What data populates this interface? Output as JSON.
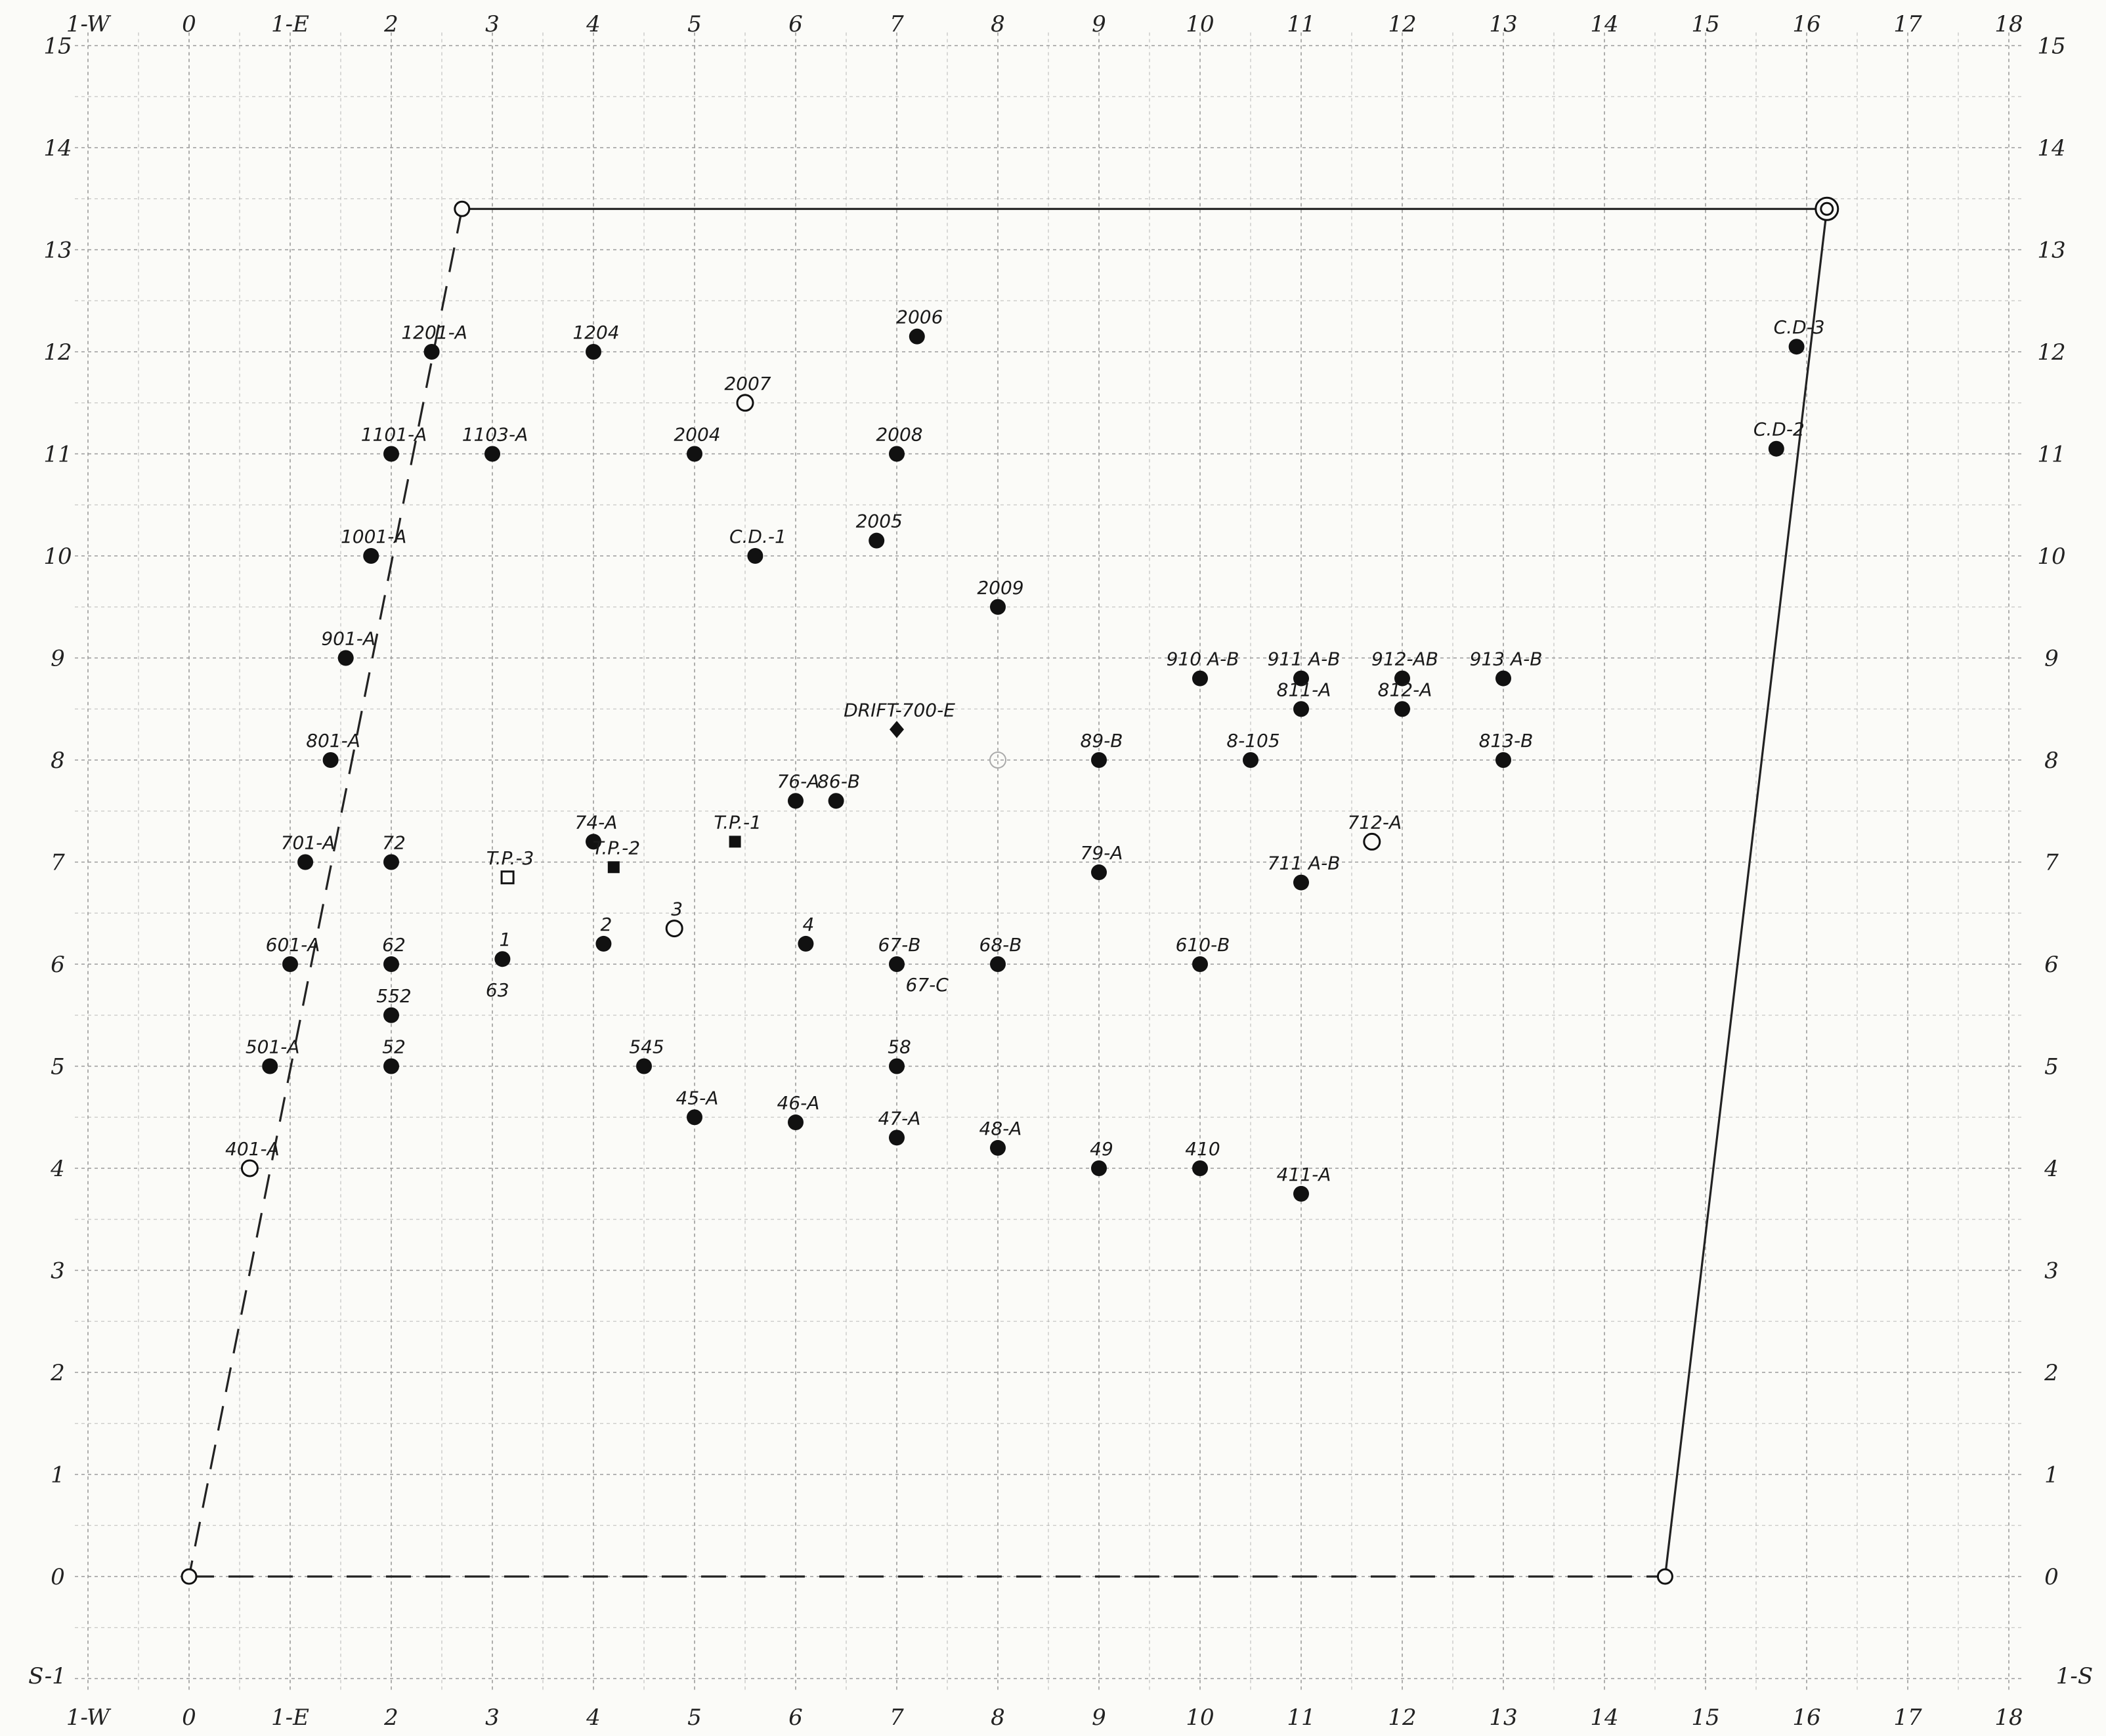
{
  "chart_data": {
    "type": "scatter",
    "x_ticks": [
      "1-W",
      "0",
      "1-E",
      "2",
      "3",
      "4",
      "5",
      "6",
      "7",
      "8",
      "9",
      "10",
      "11",
      "12",
      "13",
      "14",
      "15",
      "16",
      "17",
      "18"
    ],
    "y_ticks": [
      "S-1",
      "0",
      "1",
      "2",
      "3",
      "4",
      "5",
      "6",
      "7",
      "8",
      "9",
      "10",
      "11",
      "12",
      "13",
      "14",
      "15"
    ],
    "bottom_left_label": "S-1",
    "bottom_right_label": "1-S",
    "xlim": [
      -1,
      18
    ],
    "ylim": [
      -1,
      15
    ],
    "grid": true,
    "boundary": {
      "corners": [
        {
          "x": 0,
          "y": 0,
          "marker": "open-circle"
        },
        {
          "x": 14.6,
          "y": 0,
          "marker": "open-circle"
        },
        {
          "x": 16.2,
          "y": 13.4,
          "marker": "double-circle"
        },
        {
          "x": 2.7,
          "y": 13.4,
          "marker": "open-circle"
        }
      ],
      "edges": [
        {
          "from": 0,
          "to": 1,
          "style": "dashed"
        },
        {
          "from": 1,
          "to": 2,
          "style": "solid"
        },
        {
          "from": 2,
          "to": 3,
          "style": "solid"
        },
        {
          "from": 3,
          "to": 0,
          "style": "dashed"
        }
      ]
    },
    "points": [
      {
        "label": "1201-A",
        "x": 2.4,
        "y": 12,
        "marker": "filled-circle"
      },
      {
        "label": "1204",
        "x": 4,
        "y": 12,
        "marker": "filled-circle"
      },
      {
        "label": "2006",
        "x": 7.2,
        "y": 12.15,
        "marker": "filled-circle"
      },
      {
        "label": "2007",
        "x": 5.5,
        "y": 11.5,
        "marker": "open-circle"
      },
      {
        "label": "1101-A",
        "x": 2,
        "y": 11,
        "marker": "filled-circle"
      },
      {
        "label": "1103-A",
        "x": 3,
        "y": 11,
        "marker": "filled-circle"
      },
      {
        "label": "2004",
        "x": 5,
        "y": 11,
        "marker": "filled-circle"
      },
      {
        "label": "2008",
        "x": 7,
        "y": 11,
        "marker": "filled-circle"
      },
      {
        "label": "1001-A",
        "x": 1.8,
        "y": 10,
        "marker": "filled-circle"
      },
      {
        "label": "C.D.-1",
        "x": 5.6,
        "y": 10,
        "marker": "filled-circle"
      },
      {
        "label": "2005",
        "x": 6.8,
        "y": 10.15,
        "marker": "filled-circle"
      },
      {
        "label": "2009",
        "x": 8,
        "y": 9.5,
        "marker": "filled-circle"
      },
      {
        "label": "C.D-3",
        "x": 15.9,
        "y": 12.05,
        "marker": "filled-circle"
      },
      {
        "label": "C.D-2",
        "x": 15.7,
        "y": 11.05,
        "marker": "filled-circle"
      },
      {
        "label": "901-A",
        "x": 1.55,
        "y": 9,
        "marker": "filled-circle"
      },
      {
        "label": "910 A-B",
        "x": 10,
        "y": 8.8,
        "marker": "filled-circle"
      },
      {
        "label": "911 A-B",
        "x": 11,
        "y": 8.8,
        "marker": "filled-circle"
      },
      {
        "label": "912-AB",
        "x": 12,
        "y": 8.8,
        "marker": "filled-circle"
      },
      {
        "label": "913 A-B",
        "x": 13,
        "y": 8.8,
        "marker": "filled-circle"
      },
      {
        "label": "811-A",
        "x": 11,
        "y": 8.5,
        "marker": "filled-circle"
      },
      {
        "label": "812-A",
        "x": 12,
        "y": 8.5,
        "marker": "filled-circle"
      },
      {
        "label": "DRIFT-700-E",
        "x": 7,
        "y": 8.3,
        "marker": "diamond"
      },
      {
        "label": "801-A",
        "x": 1.4,
        "y": 8,
        "marker": "filled-circle"
      },
      {
        "label": "",
        "x": 8,
        "y": 8,
        "marker": "faint-circle"
      },
      {
        "label": "89-B",
        "x": 9,
        "y": 8,
        "marker": "filled-circle"
      },
      {
        "label": "8-105",
        "x": 10.5,
        "y": 8,
        "marker": "filled-circle"
      },
      {
        "label": "813-B",
        "x": 13,
        "y": 8,
        "marker": "filled-circle"
      },
      {
        "label": "76-A",
        "x": 6,
        "y": 7.6,
        "marker": "filled-circle"
      },
      {
        "label": "86-B",
        "x": 6.4,
        "y": 7.6,
        "marker": "filled-circle"
      },
      {
        "label": "T.P.-1",
        "x": 5.4,
        "y": 7.2,
        "marker": "filled-square"
      },
      {
        "label": "712-A",
        "x": 11.7,
        "y": 7.2,
        "marker": "open-circle"
      },
      {
        "label": "74-A",
        "x": 4,
        "y": 7.2,
        "marker": "filled-circle"
      },
      {
        "label": "701-A",
        "x": 1.15,
        "y": 7,
        "marker": "filled-circle"
      },
      {
        "label": "72",
        "x": 2,
        "y": 7,
        "marker": "filled-circle"
      },
      {
        "label": "T.P.-3",
        "x": 3.15,
        "y": 6.85,
        "marker": "open-square"
      },
      {
        "label": "T.P.-2",
        "x": 4.2,
        "y": 6.95,
        "marker": "filled-square"
      },
      {
        "label": "79-A",
        "x": 9,
        "y": 6.9,
        "marker": "filled-circle"
      },
      {
        "label": "711 A-B",
        "x": 11,
        "y": 6.8,
        "marker": "filled-circle"
      },
      {
        "label": "3",
        "x": 4.8,
        "y": 6.35,
        "marker": "open-circle"
      },
      {
        "label": "2",
        "x": 4.1,
        "y": 6.2,
        "marker": "filled-circle"
      },
      {
        "label": "4",
        "x": 6.1,
        "y": 6.2,
        "marker": "filled-circle"
      },
      {
        "label": "1",
        "x": 3.1,
        "y": 6.05,
        "marker": "filled-circle"
      },
      {
        "label": "63",
        "x": 3.05,
        "y": 5.75,
        "marker": "none"
      },
      {
        "label": "601-A",
        "x": 1,
        "y": 6,
        "marker": "filled-circle"
      },
      {
        "label": "62",
        "x": 2,
        "y": 6,
        "marker": "filled-circle"
      },
      {
        "label": "67-B",
        "x": 7,
        "y": 6,
        "marker": "filled-circle"
      },
      {
        "label": "67-C",
        "x": 7.3,
        "y": 5.8,
        "marker": "none"
      },
      {
        "label": "68-B",
        "x": 8,
        "y": 6,
        "marker": "filled-circle"
      },
      {
        "label": "610-B",
        "x": 10,
        "y": 6,
        "marker": "filled-circle"
      },
      {
        "label": "552",
        "x": 2,
        "y": 5.5,
        "marker": "filled-circle"
      },
      {
        "label": "501-A",
        "x": 0.8,
        "y": 5,
        "marker": "filled-circle"
      },
      {
        "label": "52",
        "x": 2,
        "y": 5,
        "marker": "filled-circle"
      },
      {
        "label": "545",
        "x": 4.5,
        "y": 5,
        "marker": "filled-circle"
      },
      {
        "label": "58",
        "x": 7,
        "y": 5,
        "marker": "filled-circle"
      },
      {
        "label": "45-A",
        "x": 5,
        "y": 4.5,
        "marker": "filled-circle"
      },
      {
        "label": "46-A",
        "x": 6,
        "y": 4.45,
        "marker": "filled-circle"
      },
      {
        "label": "47-A",
        "x": 7,
        "y": 4.3,
        "marker": "filled-circle"
      },
      {
        "label": "48-A",
        "x": 8,
        "y": 4.2,
        "marker": "filled-circle"
      },
      {
        "label": "49",
        "x": 9,
        "y": 4,
        "marker": "filled-circle"
      },
      {
        "label": "410",
        "x": 10,
        "y": 4,
        "marker": "filled-circle"
      },
      {
        "label": "411-A",
        "x": 11,
        "y": 3.75,
        "marker": "filled-circle"
      },
      {
        "label": "401-A",
        "x": 0.6,
        "y": 4,
        "marker": "open-circle"
      }
    ]
  }
}
